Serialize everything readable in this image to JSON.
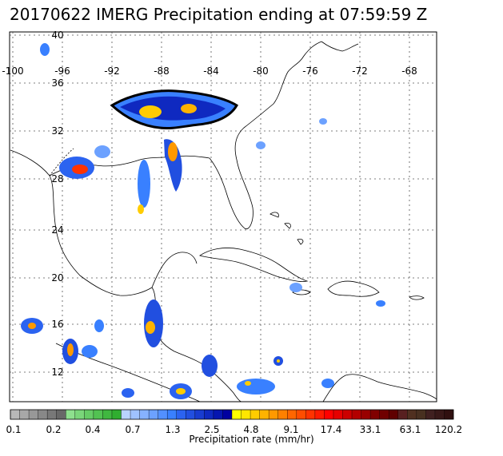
{
  "title": "20170622 IMERG Precipitation ending at 07:59:59 Z",
  "lon_labels": [
    "-100",
    "-96",
    "-92",
    "-88",
    "-84",
    "-80",
    "-76",
    "-72",
    "-68"
  ],
  "lat_labels": [
    "40",
    "36",
    "32",
    "28",
    "24",
    "20",
    "16",
    "12"
  ],
  "colorbar": {
    "label": "Precipitation rate (mm/hr)",
    "ticks": [
      "0.1",
      "0.2",
      "0.4",
      "0.7",
      "1.3",
      "2.5",
      "4.8",
      "9.1",
      "17.4",
      "33.1",
      "63.1",
      "120.2"
    ],
    "colors": [
      "#b8b8b8",
      "#a8a8a8",
      "#989898",
      "#888888",
      "#787878",
      "#686868",
      "#8ee08e",
      "#7ad67a",
      "#66cc66",
      "#52c252",
      "#40b840",
      "#30ae30",
      "#b9d3ff",
      "#9fc2ff",
      "#86b2ff",
      "#6ca1ff",
      "#5290ff",
      "#3980ff",
      "#2b63f0",
      "#214fe0",
      "#183cd0",
      "#0f29c0",
      "#0616b0",
      "#0000a0",
      "#ffff00",
      "#ffe600",
      "#ffcc00",
      "#ffb300",
      "#ff9900",
      "#ff8000",
      "#ff6600",
      "#ff4d00",
      "#ff3300",
      "#ff1a00",
      "#ff0000",
      "#e60000",
      "#cc0000",
      "#b30000",
      "#990000",
      "#800000",
      "#700000",
      "#600000",
      "#582020",
      "#503020",
      "#483020",
      "#402020",
      "#381818",
      "#301010"
    ]
  },
  "colors": {
    "land": "#ffffff",
    "coast": "#000000",
    "grid": "#555555"
  }
}
